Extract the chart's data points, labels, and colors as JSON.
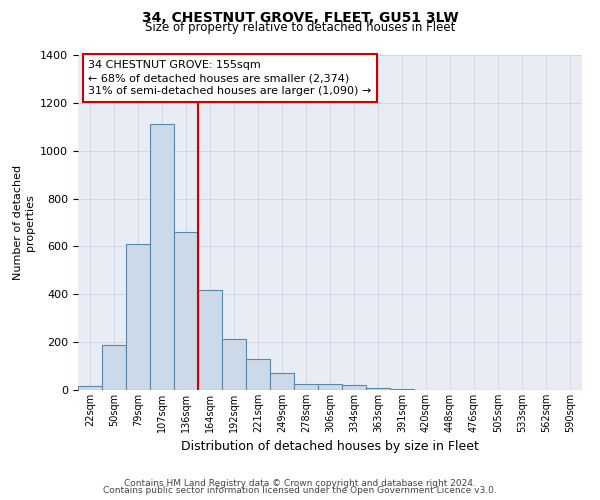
{
  "title": "34, CHESTNUT GROVE, FLEET, GU51 3LW",
  "subtitle": "Size of property relative to detached houses in Fleet",
  "xlabel": "Distribution of detached houses by size in Fleet",
  "ylabel": "Number of detached\nproperties",
  "categories": [
    "22sqm",
    "50sqm",
    "79sqm",
    "107sqm",
    "136sqm",
    "164sqm",
    "192sqm",
    "221sqm",
    "249sqm",
    "278sqm",
    "306sqm",
    "334sqm",
    "363sqm",
    "391sqm",
    "420sqm",
    "448sqm",
    "476sqm",
    "505sqm",
    "533sqm",
    "562sqm",
    "590sqm"
  ],
  "values": [
    15,
    190,
    610,
    1110,
    660,
    420,
    215,
    130,
    70,
    25,
    25,
    20,
    10,
    5,
    0,
    0,
    0,
    0,
    0,
    0,
    0
  ],
  "bar_color": "#ccd9e8",
  "bar_edge_color": "#5588aa",
  "bar_edge_width": 0.8,
  "grid_color": "#c8cedd",
  "bg_color": "#e8edf5",
  "annotation_line1": "34 CHESTNUT GROVE: 155sqm",
  "annotation_line2": "← 68% of detached houses are smaller (2,374)",
  "annotation_line3": "31% of semi-detached houses are larger (1,090) →",
  "vline_position": 4.5,
  "vline_color": "#cc0000",
  "box_color": "#cc0000",
  "ylim": [
    0,
    1400
  ],
  "yticks": [
    0,
    200,
    400,
    600,
    800,
    1000,
    1200,
    1400
  ],
  "footer1": "Contains HM Land Registry data © Crown copyright and database right 2024.",
  "footer2": "Contains public sector information licensed under the Open Government Licence v3.0."
}
